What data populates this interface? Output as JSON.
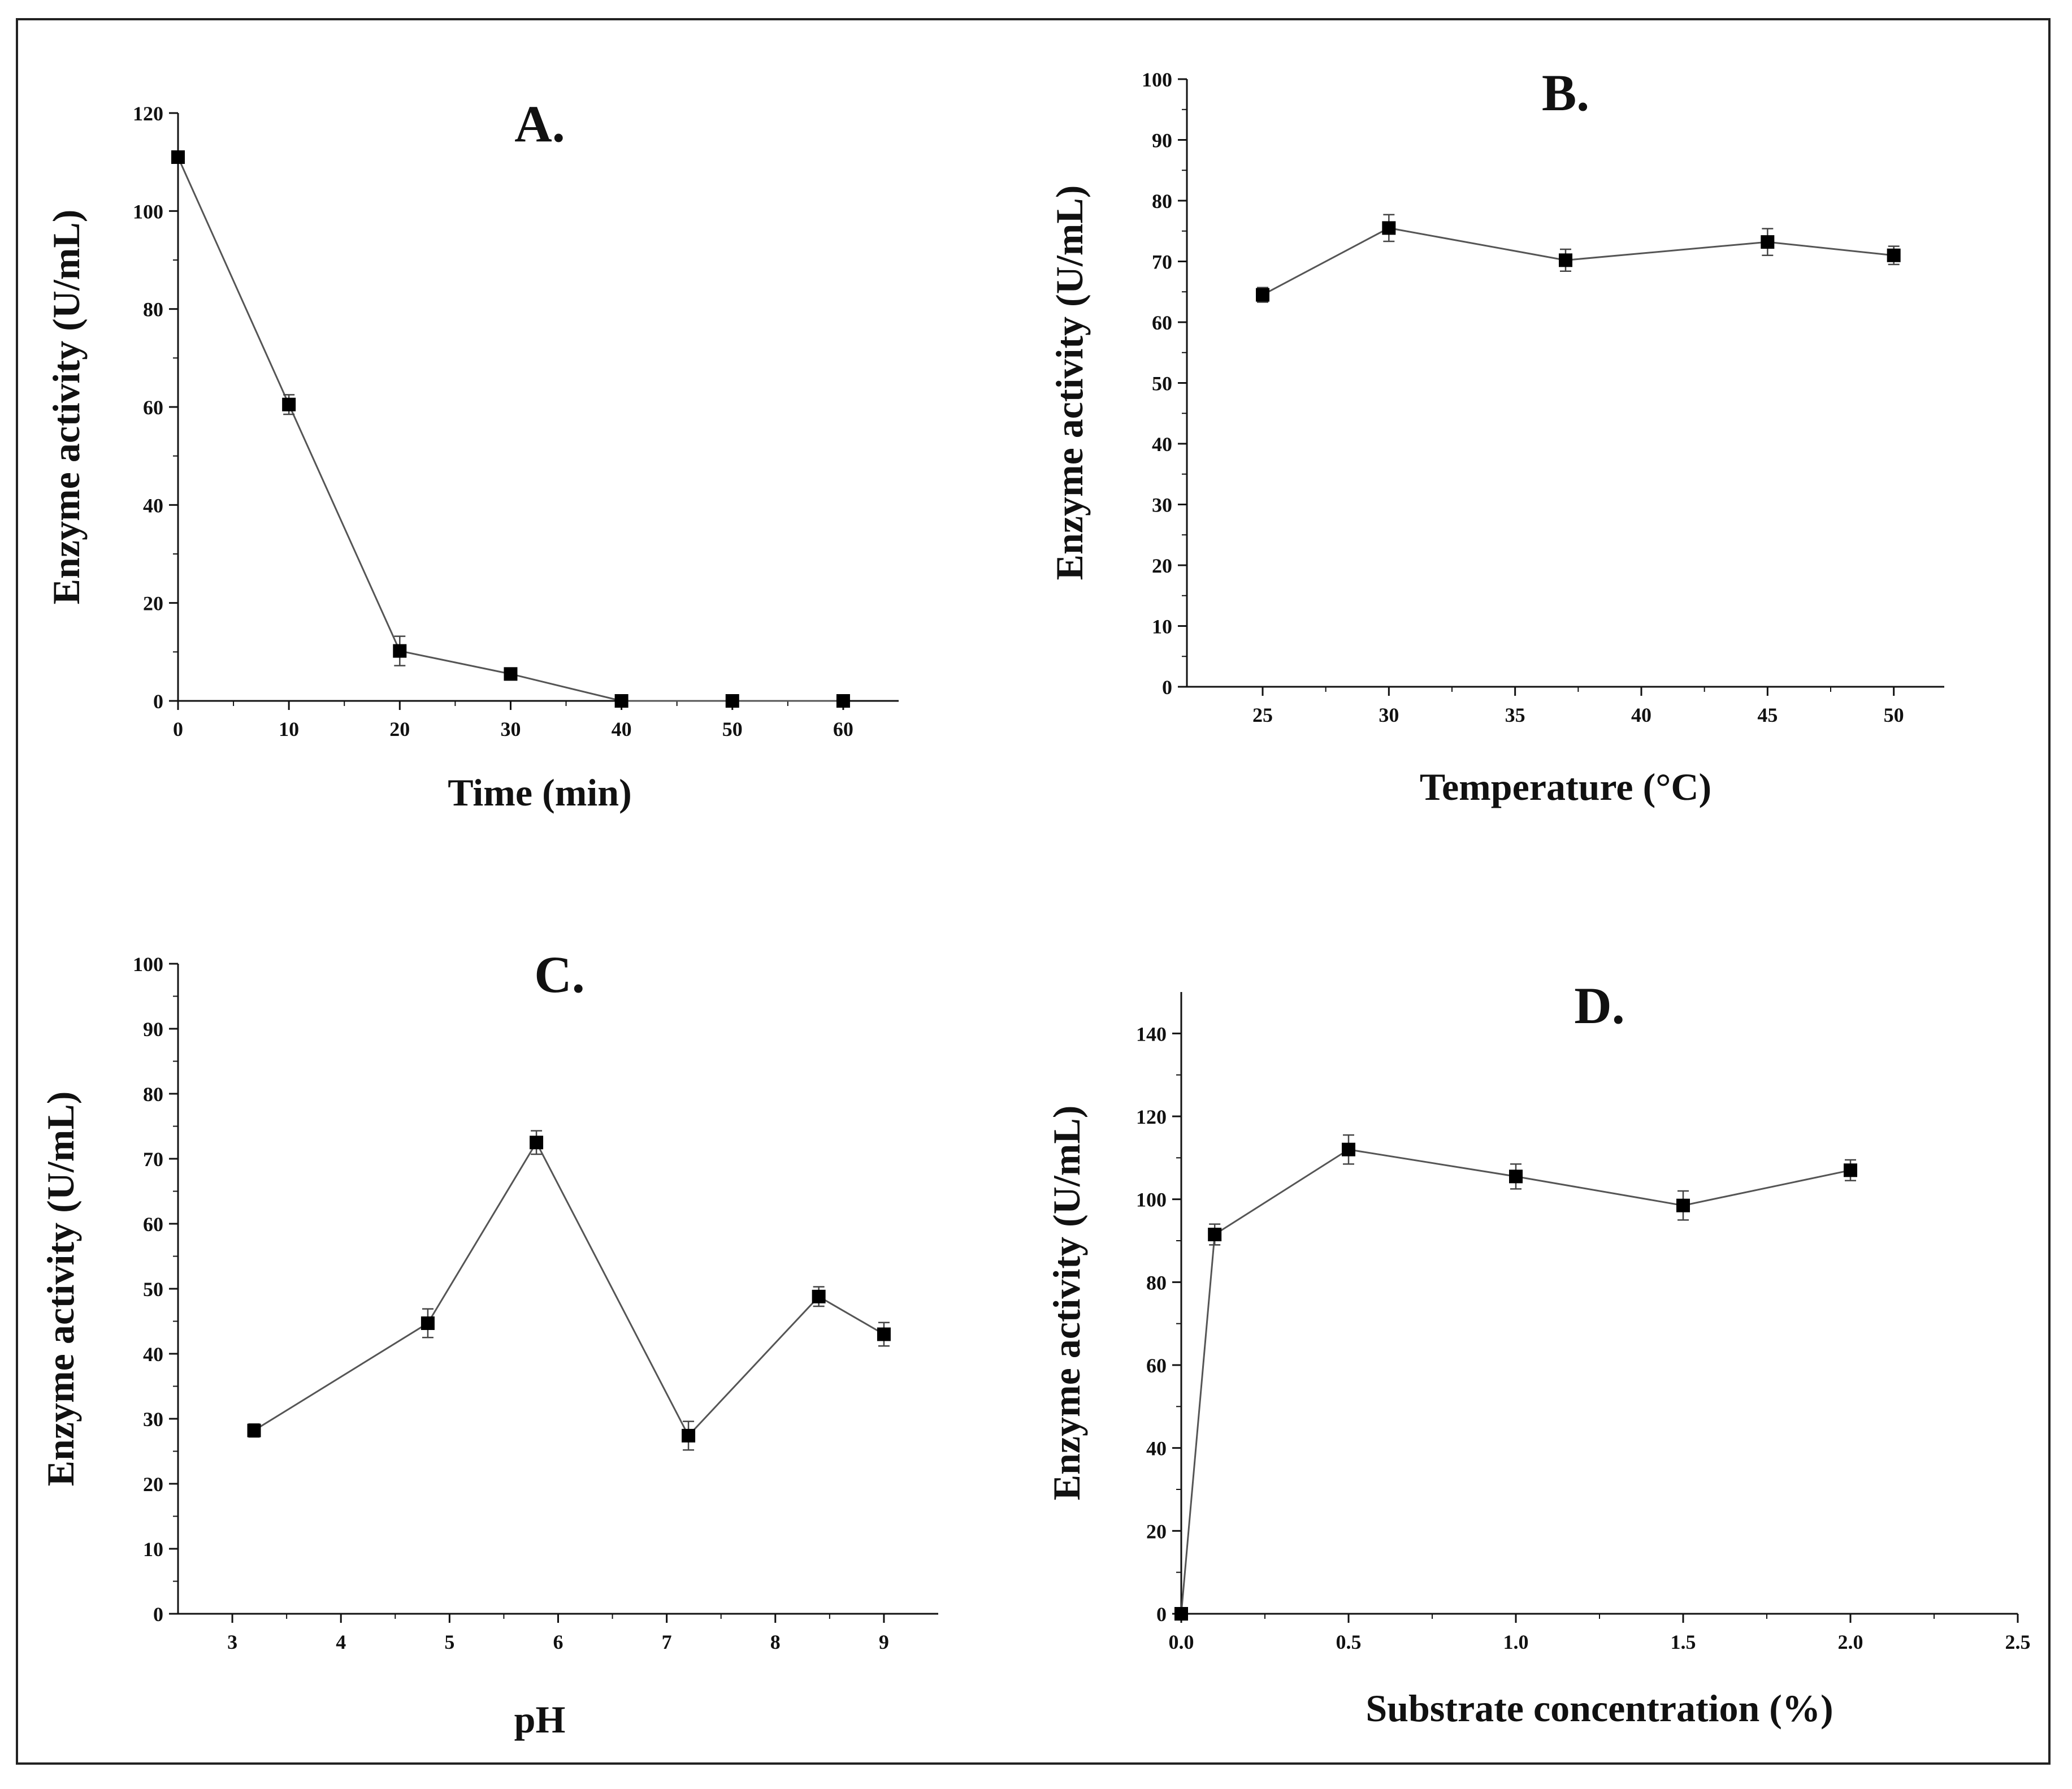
{
  "chart_data": [
    {
      "type": "line",
      "title": "A.",
      "xlabel": "Time (min)",
      "ylabel": "Enzyme activity (U/mL)",
      "xlim": [
        0,
        65
      ],
      "ylim": [
        0,
        120
      ],
      "xticks": [
        0,
        10,
        20,
        30,
        40,
        50,
        60
      ],
      "yticks": [
        0,
        20,
        40,
        60,
        80,
        100,
        120
      ],
      "series": [
        {
          "name": "Enzyme activity",
          "x": [
            0,
            10,
            20,
            30,
            40,
            50,
            60
          ],
          "y": [
            111,
            60.5,
            10.2,
            5.5,
            0,
            0,
            0
          ],
          "err": [
            0,
            2,
            3,
            0.8,
            0,
            0,
            0
          ]
        }
      ]
    },
    {
      "type": "line",
      "title": "B.",
      "xlabel": "Temperature (°C)",
      "ylabel": "Enzyme activity (U/mL)",
      "xlim": [
        22,
        52
      ],
      "ylim": [
        0,
        100
      ],
      "xticks": [
        25,
        30,
        35,
        40,
        45,
        50
      ],
      "yticks": [
        0,
        10,
        20,
        30,
        40,
        50,
        60,
        70,
        80,
        90,
        100
      ],
      "series": [
        {
          "name": "Enzyme activity",
          "x": [
            25,
            30,
            37,
            45,
            50
          ],
          "y": [
            64.5,
            75.5,
            70.2,
            73.2,
            71
          ],
          "err": [
            1.2,
            2.2,
            1.8,
            2.2,
            1.5
          ]
        }
      ]
    },
    {
      "type": "line",
      "title": "C.",
      "xlabel": "pH",
      "ylabel": "Enzyme activity (U/mL)",
      "xlim": [
        2.5,
        9.5
      ],
      "ylim": [
        0,
        100
      ],
      "xticks": [
        3,
        4,
        5,
        6,
        7,
        8,
        9
      ],
      "yticks": [
        0,
        10,
        20,
        30,
        40,
        50,
        60,
        70,
        80,
        90,
        100
      ],
      "series": [
        {
          "name": "Enzyme activity",
          "x": [
            3.2,
            4.8,
            5.8,
            7.2,
            8.4,
            9.0
          ],
          "y": [
            28.2,
            44.7,
            72.5,
            27.4,
            48.8,
            43.0
          ],
          "err": [
            1.0,
            2.2,
            1.8,
            2.2,
            1.5,
            1.8
          ]
        }
      ]
    },
    {
      "type": "line",
      "title": "D.",
      "xlabel": "Substrate concentration (%)",
      "ylabel": "Enzyme activity (U/mL)",
      "xlim": [
        0,
        2.5
      ],
      "ylim": [
        0,
        150
      ],
      "xticks": [
        "0.0",
        "0.5",
        "1.0",
        "1.5",
        "2.0",
        "2.5"
      ],
      "yticks": [
        0,
        20,
        40,
        60,
        80,
        100,
        120,
        140
      ],
      "series": [
        {
          "name": "Enzyme activity",
          "x": [
            0,
            0.1,
            0.5,
            1.0,
            1.5,
            2.0
          ],
          "y": [
            0,
            91.5,
            112,
            105.5,
            98.5,
            107
          ],
          "err": [
            0,
            2.5,
            3.5,
            3.0,
            3.5,
            2.5
          ]
        }
      ]
    }
  ]
}
